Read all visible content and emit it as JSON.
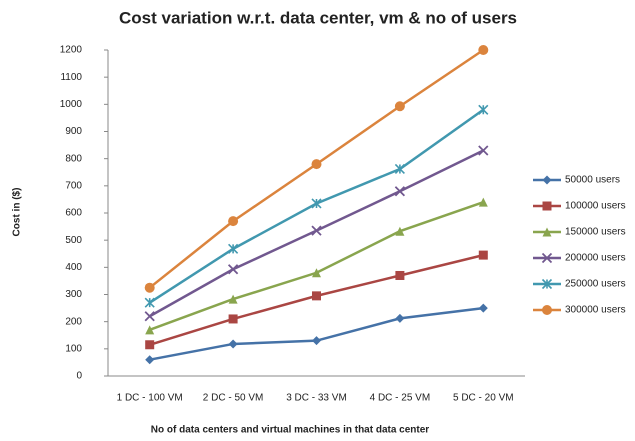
{
  "chart_data": {
    "type": "line",
    "title": "Cost variation w.r.t. data center, vm & no of users",
    "x_label": "No of data centers and virtual machines in that data center",
    "y_label": "Cost in ($)",
    "categories": [
      "1 DC - 100 VM",
      "2 DC - 50 VM",
      "3 DC - 33 VM",
      "4 DC - 25 VM",
      "5 DC - 20 VM"
    ],
    "series": [
      {
        "name": "50000 users",
        "color": "#4572a7",
        "marker": "diamond",
        "values": [
          60,
          118,
          130,
          212,
          250
        ]
      },
      {
        "name": "100000 users",
        "color": "#aa4643",
        "marker": "square",
        "values": [
          115,
          210,
          295,
          370,
          445
        ]
      },
      {
        "name": "150000 users",
        "color": "#89a54e",
        "marker": "triangle",
        "values": [
          170,
          283,
          380,
          533,
          640
        ]
      },
      {
        "name": "200000 users",
        "color": "#71588f",
        "marker": "x",
        "values": [
          220,
          393,
          535,
          680,
          830
        ]
      },
      {
        "name": "250000 users",
        "color": "#4198af",
        "marker": "star",
        "values": [
          270,
          468,
          635,
          762,
          980
        ]
      },
      {
        "name": "300000 users",
        "color": "#db843d",
        "marker": "circle",
        "values": [
          325,
          570,
          780,
          993,
          1200
        ]
      }
    ],
    "ylim": [
      0,
      1200
    ],
    "yticks": [
      0,
      100,
      200,
      300,
      400,
      500,
      600,
      700,
      800,
      900,
      1000,
      1100,
      1200
    ],
    "grid": false,
    "legend": "right"
  }
}
